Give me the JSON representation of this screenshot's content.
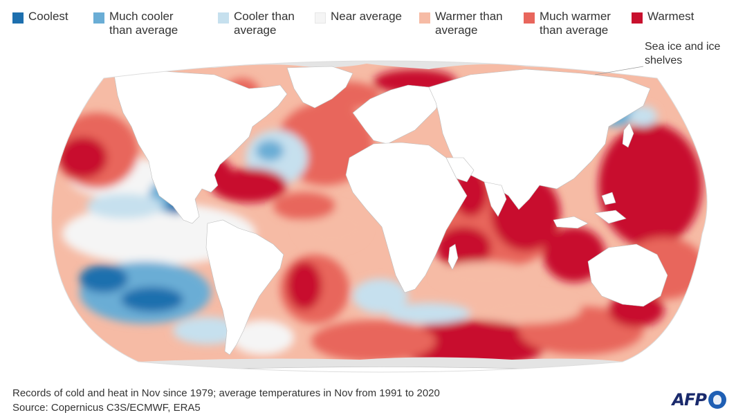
{
  "legend": [
    {
      "label": "Coolest",
      "color": "#1d6fae"
    },
    {
      "label": "Much cooler than average",
      "color": "#6aadd5"
    },
    {
      "label": "Cooler than average",
      "color": "#c6e0ee"
    },
    {
      "label": "Near average",
      "color": "#f5f5f5"
    },
    {
      "label": "Warmer than average",
      "color": "#f6bba5"
    },
    {
      "label": "Much warmer than average",
      "color": "#e8665c"
    },
    {
      "label": "Warmest",
      "color": "#c8102e"
    }
  ],
  "map": {
    "land_color": "#ffffff",
    "ice_color": "#e4e4e4",
    "ocean_base_color": "#f6bba5",
    "callout_label": "Sea ice and ice shelves"
  },
  "footer": {
    "line1": "Records of cold and heat in Nov since 1979; average temperatures in Nov from 1991 to 2020",
    "line2": "Source: Copernicus C3S/ECMWF, ERA5"
  },
  "logo": {
    "text": "AFP"
  }
}
